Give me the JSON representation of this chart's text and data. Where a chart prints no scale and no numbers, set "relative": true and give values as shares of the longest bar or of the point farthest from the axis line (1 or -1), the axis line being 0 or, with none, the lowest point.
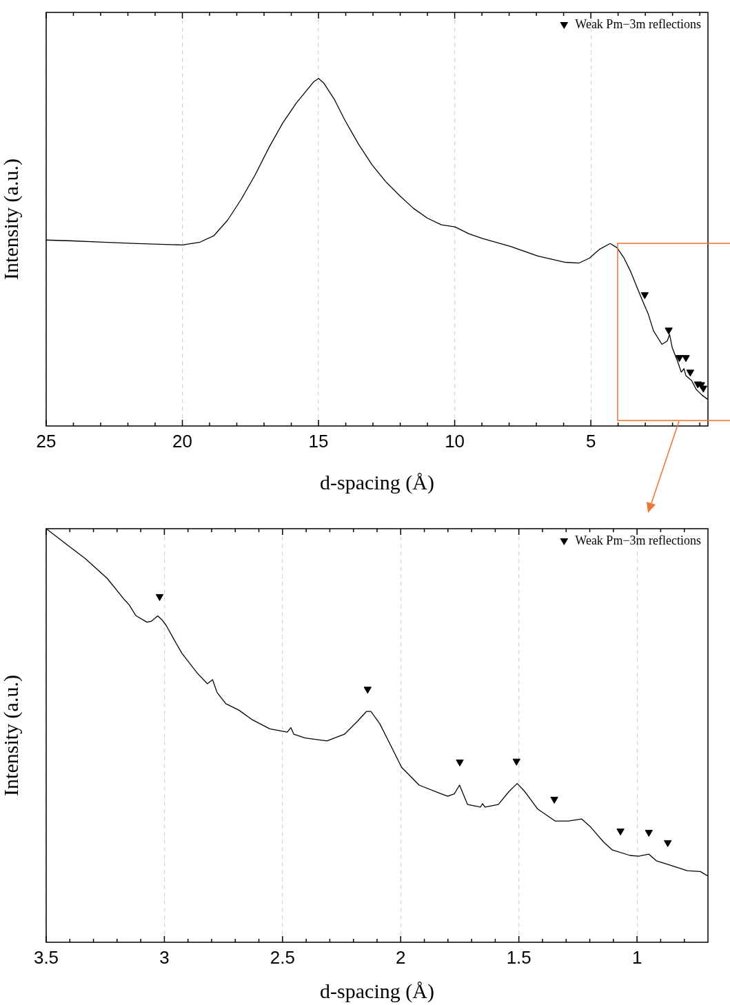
{
  "chart_data": [
    {
      "type": "line",
      "xlabel": "d-spacing (Å)",
      "ylabel": "Intensity (a.u.)",
      "relative": true,
      "grid": "x",
      "legend": "top right",
      "xlim": [
        25,
        0.7
      ],
      "xticks": [
        25,
        {
          "value": 24,
          "label": null
        },
        {
          "value": 23,
          "label": null
        },
        {
          "value": 22,
          "label": null
        },
        {
          "value": 21,
          "label": null
        },
        20,
        {
          "value": 19,
          "label": null
        },
        {
          "value": 18,
          "label": null
        },
        {
          "value": 17,
          "label": null
        },
        {
          "value": 16,
          "label": null
        },
        15,
        {
          "value": 14,
          "label": null
        },
        {
          "value": 13,
          "label": null
        },
        {
          "value": 12,
          "label": null
        },
        {
          "value": 11,
          "label": null
        },
        10,
        {
          "value": 9,
          "label": null
        },
        {
          "value": 8,
          "label": null
        },
        {
          "value": 7,
          "label": null
        },
        {
          "value": 6,
          "label": null
        },
        5,
        {
          "value": 4,
          "label": null
        },
        {
          "value": 3,
          "label": null
        },
        {
          "value": 2,
          "label": null
        },
        {
          "value": 1,
          "label": null
        }
      ],
      "series": [
        {
          "type": "line",
          "color": "#000000",
          "marker": "none",
          "x": [
            25.0,
            24.16,
            22.9,
            21.63,
            20.0,
            19.35,
            18.85,
            18.34,
            17.84,
            17.33,
            16.82,
            16.32,
            15.81,
            15.43,
            15.18,
            15.0,
            14.8,
            14.42,
            14.04,
            13.53,
            13.03,
            12.52,
            12.01,
            11.51,
            11.0,
            10.49,
            9.99,
            9.48,
            8.97,
            7.96,
            6.95,
            5.94,
            5.43,
            5.05,
            4.67,
            4.29,
            4.04,
            3.78,
            3.53,
            3.28,
            3.1,
            2.9,
            2.7,
            2.39,
            2.19,
            2.11,
            2.01,
            1.81,
            1.68,
            1.58,
            1.51,
            1.3,
            1.13,
            0.92,
            0.7
          ],
          "values": [
            0.535,
            0.533,
            0.529,
            0.525,
            0.521,
            0.529,
            0.547,
            0.592,
            0.652,
            0.722,
            0.801,
            0.871,
            0.93,
            0.966,
            0.99,
            1.0,
            0.986,
            0.94,
            0.881,
            0.811,
            0.751,
            0.702,
            0.662,
            0.626,
            0.598,
            0.579,
            0.573,
            0.553,
            0.539,
            0.517,
            0.489,
            0.471,
            0.469,
            0.483,
            0.509,
            0.525,
            0.513,
            0.483,
            0.443,
            0.394,
            0.36,
            0.324,
            0.274,
            0.235,
            0.245,
            0.264,
            0.225,
            0.185,
            0.155,
            0.165,
            0.145,
            0.131,
            0.105,
            0.089,
            0.076
          ]
        },
        {
          "type": "scatter",
          "name": "Weak Pm−3m reflections",
          "color": "#000000",
          "marker": "triangle",
          "x": [
            3.02,
            2.14,
            1.75,
            1.51,
            1.35,
            1.07,
            0.95,
            0.87
          ],
          "values": [
            0.378,
            0.276,
            0.197,
            0.197,
            0.155,
            0.121,
            0.119,
            0.109
          ]
        }
      ]
    },
    {
      "type": "line",
      "xlabel": "d-spacing (Å)",
      "ylabel": "Intensity (a.u.)",
      "relative": true,
      "grid": "x",
      "legend": "top right",
      "xlim": [
        3.5,
        0.7
      ],
      "xticks": [
        3.5,
        {
          "value": 3.4,
          "label": null
        },
        {
          "value": 3.3,
          "label": null
        },
        {
          "value": 3.2,
          "label": null
        },
        {
          "value": 3.1,
          "label": null
        },
        3,
        {
          "value": 2.9,
          "label": null
        },
        {
          "value": 2.8,
          "label": null
        },
        {
          "value": 2.7,
          "label": null
        },
        {
          "value": 2.6,
          "label": null
        },
        2.5,
        {
          "value": 2.4,
          "label": null
        },
        {
          "value": 2.3,
          "label": null
        },
        {
          "value": 2.2,
          "label": null
        },
        {
          "value": 2.1,
          "label": null
        },
        2,
        {
          "value": 1.9,
          "label": null
        },
        {
          "value": 1.8,
          "label": null
        },
        {
          "value": 1.7,
          "label": null
        },
        {
          "value": 1.6,
          "label": null
        },
        1.5,
        {
          "value": 1.4,
          "label": null
        },
        {
          "value": 1.3,
          "label": null
        },
        {
          "value": 1.2,
          "label": null
        },
        {
          "value": 1.1,
          "label": null
        },
        1,
        {
          "value": 0.9,
          "label": null
        },
        {
          "value": 0.8,
          "label": null
        }
      ],
      "series": [
        {
          "type": "line",
          "color": "#000000",
          "marker": "none",
          "x": [
            3.5,
            3.409,
            3.335,
            3.242,
            3.167,
            3.149,
            3.121,
            3.074,
            3.056,
            3.028,
            3.009,
            2.991,
            2.963,
            2.926,
            2.861,
            2.818,
            2.796,
            2.777,
            2.74,
            2.684,
            2.628,
            2.554,
            2.48,
            2.465,
            2.452,
            2.405,
            2.312,
            2.238,
            2.182,
            2.145,
            2.126,
            2.089,
            2.052,
            1.996,
            1.922,
            1.829,
            1.801,
            1.773,
            1.751,
            1.736,
            1.717,
            1.662,
            1.654,
            1.643,
            1.587,
            1.541,
            1.507,
            1.476,
            1.42,
            1.346,
            1.29,
            1.234,
            1.197,
            1.141,
            1.104,
            1.03,
            0.993,
            0.95,
            0.918,
            0.862,
            0.788,
            0.732,
            0.7
          ],
          "values": [
            1.0,
            0.96,
            0.928,
            0.88,
            0.827,
            0.816,
            0.79,
            0.774,
            0.776,
            0.789,
            0.779,
            0.765,
            0.736,
            0.699,
            0.651,
            0.625,
            0.635,
            0.604,
            0.577,
            0.561,
            0.538,
            0.516,
            0.508,
            0.519,
            0.503,
            0.494,
            0.487,
            0.503,
            0.535,
            0.558,
            0.558,
            0.529,
            0.487,
            0.423,
            0.38,
            0.359,
            0.353,
            0.359,
            0.38,
            0.359,
            0.333,
            0.327,
            0.335,
            0.327,
            0.333,
            0.365,
            0.384,
            0.365,
            0.322,
            0.293,
            0.293,
            0.298,
            0.279,
            0.242,
            0.223,
            0.21,
            0.208,
            0.213,
            0.197,
            0.187,
            0.173,
            0.171,
            0.16
          ]
        },
        {
          "type": "scatter",
          "name": "Weak Pm−3m reflections",
          "color": "#000000",
          "marker": "triangle",
          "x": [
            3.02,
            2.14,
            1.75,
            1.51,
            1.35,
            1.07,
            0.95,
            0.87
          ],
          "values": [
            0.836,
            0.612,
            0.436,
            0.438,
            0.346,
            0.269,
            0.266,
            0.241
          ]
        }
      ]
    }
  ]
}
